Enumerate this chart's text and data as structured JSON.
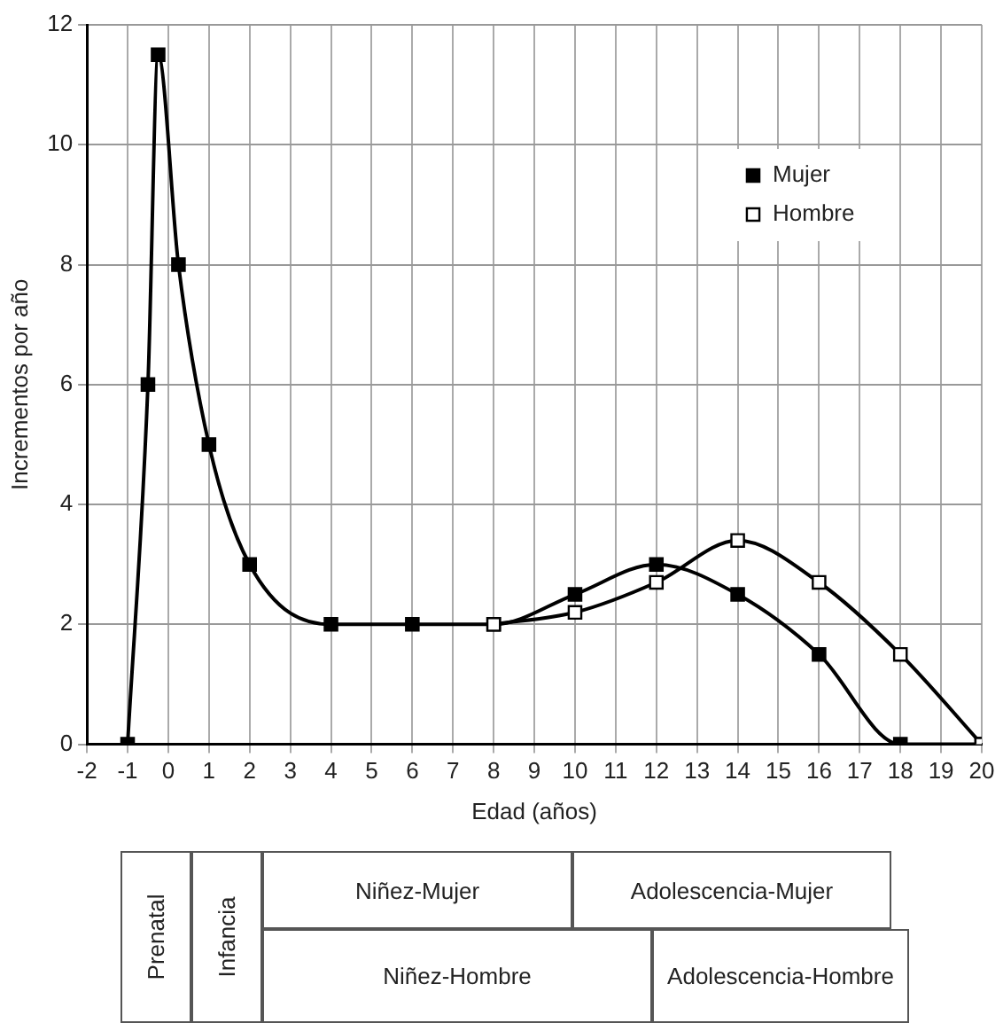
{
  "chart_data": {
    "type": "line",
    "xlabel": "Edad (años)",
    "ylabel": "Incrementos por año",
    "xlim": [
      -2,
      20
    ],
    "xticks": [
      -2,
      -1,
      0,
      1,
      2,
      3,
      4,
      5,
      6,
      7,
      8,
      9,
      10,
      11,
      12,
      13,
      14,
      15,
      16,
      17,
      18,
      19,
      20
    ],
    "ylim": [
      0,
      12
    ],
    "yticks": [
      0,
      2,
      4,
      6,
      8,
      10,
      12
    ],
    "grid": true,
    "legend": "top right",
    "marker": "square",
    "line_style": "solid",
    "series": [
      {
        "name": "Mujer",
        "color": "#000000",
        "x": [
          -1,
          -0.5,
          -0.25,
          0.25,
          1,
          2,
          4,
          6,
          8,
          10,
          12,
          14,
          16,
          18,
          20
        ],
        "values": [
          0,
          6,
          11.5,
          8,
          5,
          3,
          2,
          2,
          2,
          2.5,
          3,
          2.5,
          1.5,
          0,
          0
        ]
      },
      {
        "name": "Hombre",
        "color": "#ffffff",
        "x": [
          8,
          10,
          12,
          14,
          16,
          18,
          20
        ],
        "values": [
          2,
          2.2,
          2.7,
          3.4,
          2.7,
          1.5,
          0
        ]
      }
    ],
    "annotations": [
      "Prenatal",
      "Infancia",
      "Niñez-Mujer",
      "Adolescencia-Mujer",
      "Niñez-Hombre",
      "Adolescencia-Hombre"
    ]
  }
}
